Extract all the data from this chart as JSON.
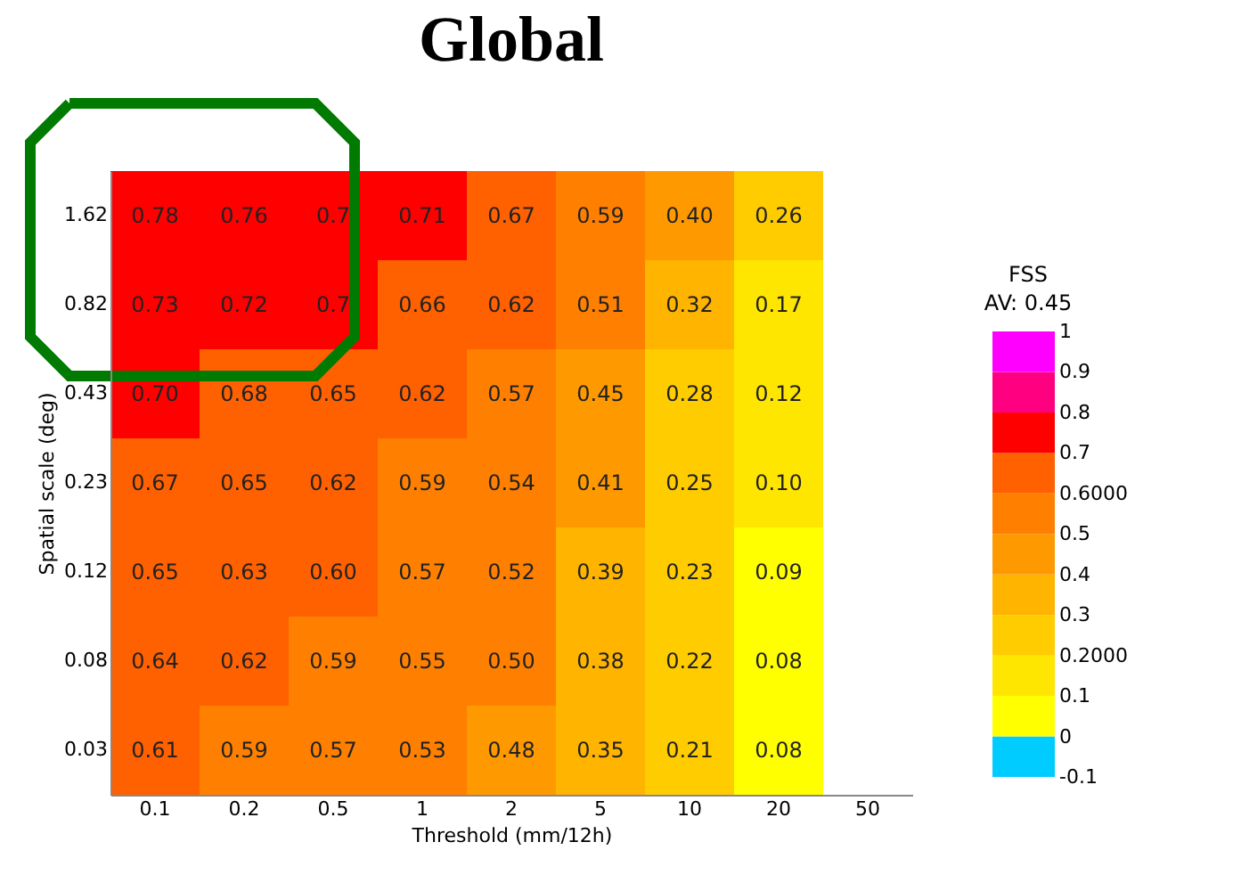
{
  "chart_data": {
    "type": "heatmap",
    "title": "Global",
    "xlabel": "Threshold (mm/12h)",
    "ylabel": "Spatial scale (deg)",
    "legend_title": "FSS",
    "annotations": [
      "AV: 0.45"
    ],
    "categories": [
      "0.1",
      "0.2",
      "0.5",
      "1",
      "2",
      "5",
      "10",
      "20",
      "50"
    ],
    "y_categories": [
      "1.62",
      "0.82",
      "0.43",
      "0.23",
      "0.12",
      "0.08",
      "0.03"
    ],
    "cells": [
      [
        0.78,
        0.76,
        0.74,
        0.71,
        0.67,
        0.59,
        0.4,
        0.26,
        null
      ],
      [
        0.73,
        0.72,
        0.7,
        0.66,
        0.62,
        0.51,
        0.32,
        0.17,
        null
      ],
      [
        0.7,
        0.68,
        0.65,
        0.62,
        0.57,
        0.45,
        0.28,
        0.12,
        null
      ],
      [
        0.67,
        0.65,
        0.62,
        0.59,
        0.54,
        0.41,
        0.25,
        0.1,
        null
      ],
      [
        0.65,
        0.63,
        0.6,
        0.57,
        0.52,
        0.39,
        0.23,
        0.09,
        null
      ],
      [
        0.64,
        0.62,
        0.59,
        0.55,
        0.5,
        0.38,
        0.22,
        0.08,
        null
      ],
      [
        0.61,
        0.59,
        0.57,
        0.53,
        0.48,
        0.35,
        0.21,
        0.08,
        null
      ]
    ],
    "clim": [
      -0.1,
      1
    ],
    "cticks": [
      -0.1,
      0,
      0.1,
      {
        "value": 0.2,
        "label": "0.2000"
      },
      0.3,
      0.4,
      0.5,
      {
        "value": 0.6,
        "label": "0.6000"
      },
      0.7,
      0.8,
      0.9,
      1
    ],
    "colors": [
      "#00ccff",
      "#ffff00",
      "#ffe600",
      "#ffcc00",
      "#ffb400",
      "#ff9900",
      "#ff8000",
      "#ff6000",
      "#ff0000",
      "#ff0080",
      "#ff00ff"
    ],
    "cell_labels": [
      [
        "0.78",
        "0.76",
        "0.7",
        "0.71",
        "0.67",
        "0.59",
        "0.40",
        "0.26",
        null
      ],
      [
        "0.73",
        "0.72",
        "0.7",
        "0.66",
        "0.62",
        "0.51",
        "0.32",
        "0.17",
        null
      ],
      [
        "0.70",
        "0.68",
        "0.65",
        "0.62",
        "0.57",
        "0.45",
        "0.28",
        "0.12",
        null
      ],
      [
        "0.67",
        "0.65",
        "0.62",
        "0.59",
        "0.54",
        "0.41",
        "0.25",
        "0.10",
        null
      ],
      [
        "0.65",
        "0.63",
        "0.60",
        "0.57",
        "0.52",
        "0.39",
        "0.23",
        "0.09",
        null
      ],
      [
        "0.64",
        "0.62",
        "0.59",
        "0.55",
        "0.50",
        "0.38",
        "0.22",
        "0.08",
        null
      ],
      [
        "0.61",
        "0.59",
        "0.57",
        "0.53",
        "0.48",
        "0.35",
        "0.21",
        "0.08",
        null
      ]
    ],
    "grid": false
  }
}
